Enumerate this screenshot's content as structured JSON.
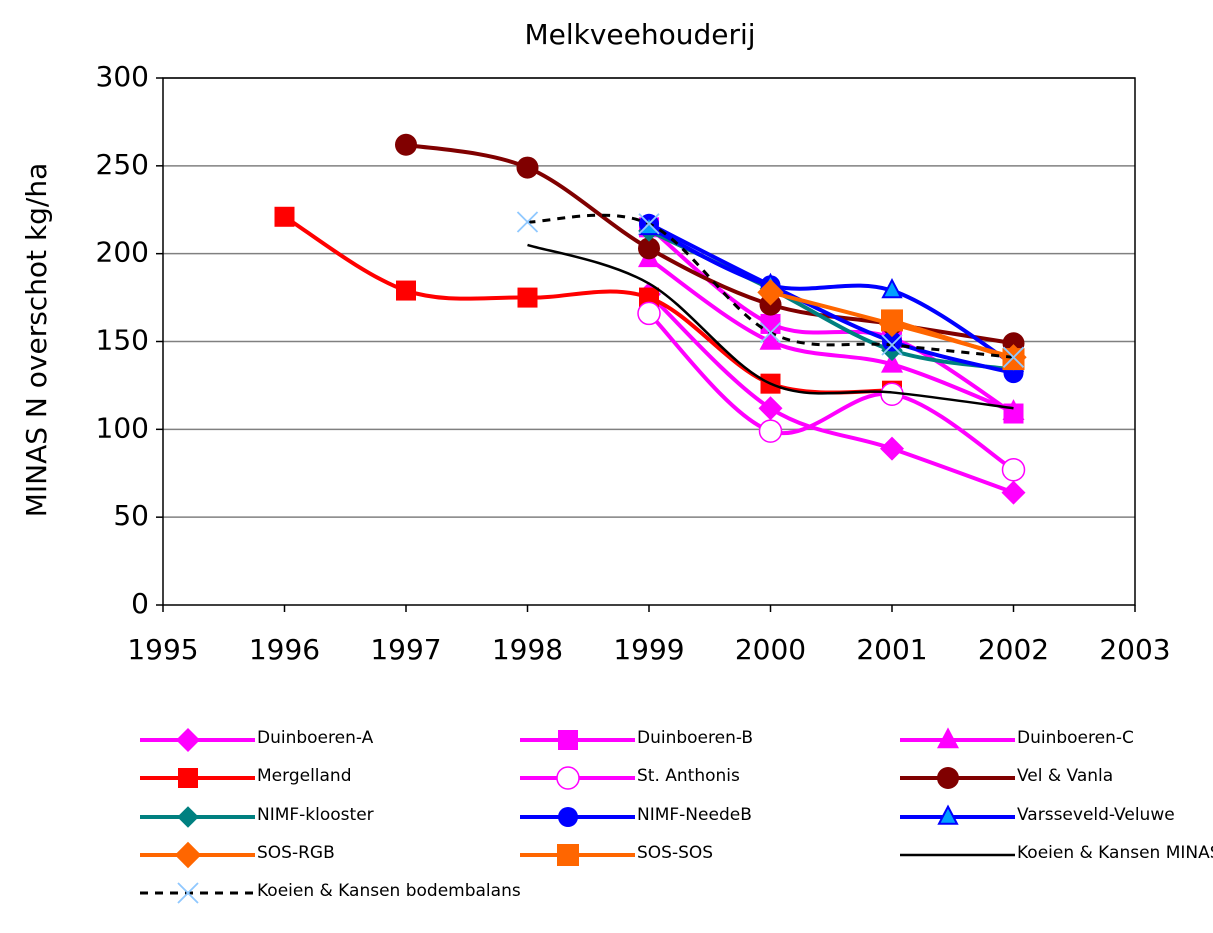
{
  "chart_data": {
    "type": "line",
    "title": "Melkveehouderij",
    "y_label": "MINAS N overschot kg/ha",
    "x": [
      1996,
      1997,
      1998,
      1999,
      2000,
      2001,
      2002
    ],
    "xlim": [
      1995,
      2003
    ],
    "xticks": [
      1995,
      1996,
      1997,
      1998,
      1999,
      2000,
      2001,
      2002,
      2003
    ],
    "ylim": [
      0,
      300
    ],
    "yticks": [
      0,
      50,
      100,
      150,
      200,
      250,
      300
    ],
    "grid": true,
    "series": [
      {
        "name": "Duinboeren-A",
        "color": "#ff00ff",
        "marker": "diamond",
        "marker_size": 10,
        "line_width": 4,
        "values": [
          null,
          null,
          null,
          177,
          112,
          89,
          64
        ]
      },
      {
        "name": "Duinboeren-B",
        "color": "#ff00ff",
        "marker": "square",
        "marker_size": 10,
        "line_width": 4,
        "values": [
          null,
          null,
          null,
          215,
          160,
          152,
          109
        ]
      },
      {
        "name": "Duinboeren-C",
        "color": "#ff00ff",
        "marker": "triangle",
        "marker_size": 11,
        "line_width": 4,
        "values": [
          null,
          null,
          null,
          197,
          150,
          137,
          110
        ]
      },
      {
        "name": "Mergelland",
        "color": "#ff0000",
        "marker": "square",
        "marker_size": 10,
        "line_width": 4,
        "values": [
          221,
          179,
          175,
          175,
          126,
          122,
          null
        ]
      },
      {
        "name": "St. Anthonis",
        "color": "#ff00ff",
        "marker": "open-circle",
        "marker_size": 11,
        "line_width": 4,
        "values": [
          null,
          null,
          null,
          166,
          99,
          120,
          77
        ]
      },
      {
        "name": "Vel & Vanla",
        "color": "#800000",
        "marker": "circle",
        "marker_size": 11,
        "line_width": 4,
        "values": [
          null,
          262,
          249,
          203,
          171,
          160,
          149
        ]
      },
      {
        "name": "NIMF-klooster",
        "color": "#008080",
        "marker": "diamond",
        "marker_size": 9,
        "line_width": 4,
        "values": [
          null,
          null,
          null,
          213,
          180,
          145,
          134
        ]
      },
      {
        "name": "NIMF-NeedeB",
        "color": "#0000ff",
        "marker": "circle",
        "marker_size": 10,
        "line_width": 4,
        "values": [
          null,
          null,
          null,
          217,
          182,
          150,
          132
        ]
      },
      {
        "name": "Varsseveld-Veluwe",
        "color": "#0000ff",
        "marker": "triangle-cyan",
        "marker_size": 9,
        "line_width": 4,
        "values": [
          null,
          null,
          null,
          215,
          182,
          179,
          137
        ]
      },
      {
        "name": "SOS-RGB",
        "color": "#ff6600",
        "marker": "diamond",
        "marker_size": 11,
        "line_width": 4,
        "values": [
          null,
          null,
          null,
          null,
          178,
          160,
          141
        ]
      },
      {
        "name": "SOS-SOS",
        "color": "#ff6600",
        "marker": "square",
        "marker_size": 11,
        "line_width": 4,
        "values": [
          null,
          null,
          null,
          null,
          null,
          162,
          140
        ]
      },
      {
        "name": "Koeien & Kansen MINAS",
        "color": "#000000",
        "marker": null,
        "marker_size": 0,
        "line_width": 2.5,
        "values": [
          null,
          null,
          205,
          183,
          126,
          121,
          112
        ]
      },
      {
        "name": "Koeien & Kansen bodembalans",
        "color": "#000000",
        "marker": "x",
        "marker_size": 10,
        "line_width": 3,
        "dashed": true,
        "values": [
          null,
          null,
          218,
          217,
          155,
          148,
          141
        ]
      }
    ]
  }
}
